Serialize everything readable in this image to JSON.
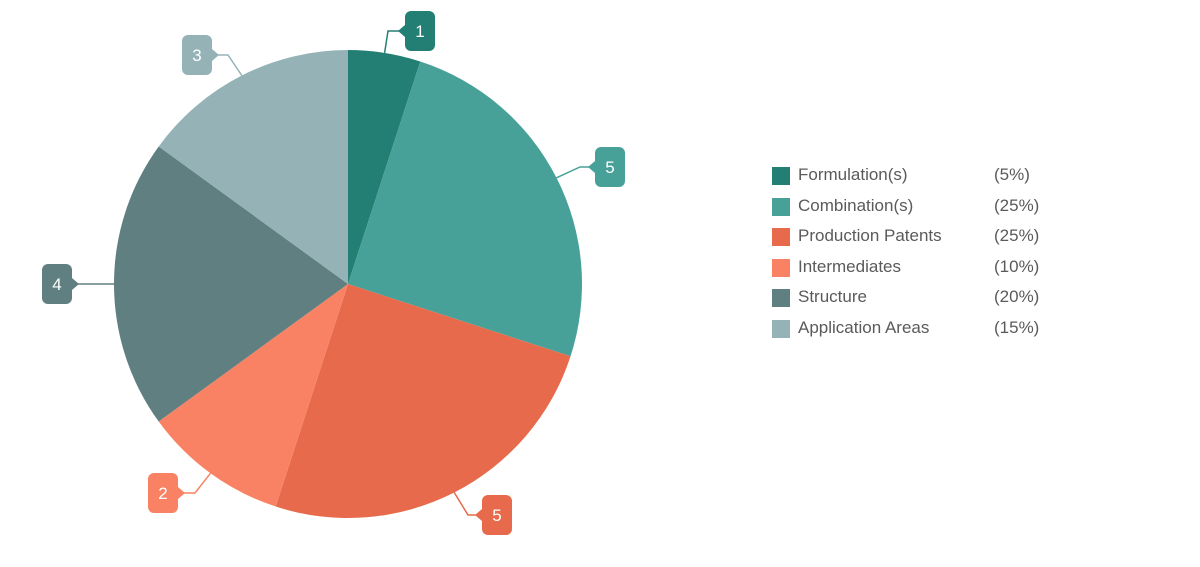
{
  "chart_data": {
    "type": "pie",
    "slices": [
      {
        "label": "Formulation(s)",
        "value": 1,
        "percent_label": "(5%)",
        "color": "#237f74"
      },
      {
        "label": "Combination(s)",
        "value": 5,
        "percent_label": "(25%)",
        "color": "#48a198"
      },
      {
        "label": "Production Patents",
        "value": 5,
        "percent_label": "(25%)",
        "color": "#e66a4b"
      },
      {
        "label": "Intermediates",
        "value": 2,
        "percent_label": "(10%)",
        "color": "#fa8264"
      },
      {
        "label": "Structure",
        "value": 4,
        "percent_label": "(20%)",
        "color": "#607f80"
      },
      {
        "label": "Application Areas",
        "value": 3,
        "percent_label": "(15%)",
        "color": "#95b3b7"
      }
    ],
    "start_angle_deg": 0,
    "direction": "clockwise",
    "legend_position": "right"
  }
}
